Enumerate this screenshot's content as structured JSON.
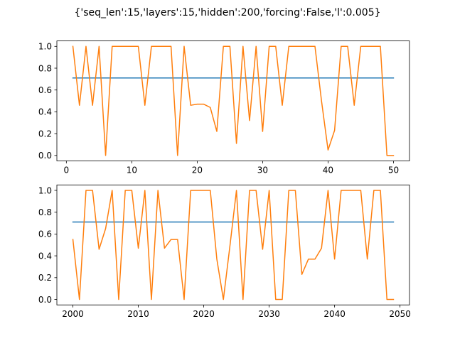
{
  "figure": {
    "title": "{'seq_len':15,'layers':15,'hidden':200,'forcing':False,'l':0.005}"
  },
  "chart_data": [
    {
      "type": "line",
      "xlim": [
        -1.45,
        52.45
      ],
      "ylim": [
        -0.05,
        1.05
      ],
      "x_ticks": [
        0,
        10,
        20,
        30,
        40,
        50
      ],
      "y_ticks": [
        0.0,
        0.2,
        0.4,
        0.6,
        0.8,
        1.0
      ],
      "x_tick_labels": [
        "0",
        "10",
        "20",
        "30",
        "40",
        "50"
      ],
      "y_tick_labels": [
        "0.0",
        "0.2",
        "0.4",
        "0.6",
        "0.8",
        "1.0"
      ],
      "grid": false,
      "series": [
        {
          "color": "#1f77b4",
          "x": [
            1,
            50
          ],
          "y": [
            0.71,
            0.71
          ]
        },
        {
          "color": "#ff7f0e",
          "x": [
            1,
            2,
            3,
            4,
            5,
            6,
            7,
            8,
            9,
            10,
            11,
            12,
            13,
            14,
            15,
            16,
            17,
            18,
            19,
            20,
            21,
            22,
            23,
            24,
            25,
            26,
            27,
            28,
            29,
            30,
            31,
            32,
            33,
            34,
            35,
            36,
            37,
            38,
            39,
            40,
            41,
            42,
            43,
            44,
            45,
            46,
            47,
            48,
            49,
            50
          ],
          "y": [
            1.0,
            0.46,
            1.0,
            0.46,
            1.0,
            0.0,
            1.0,
            1.0,
            1.0,
            1.0,
            1.0,
            0.46,
            1.0,
            1.0,
            1.0,
            1.0,
            0.0,
            1.0,
            0.46,
            0.47,
            0.47,
            0.44,
            0.22,
            1.0,
            1.0,
            0.11,
            1.0,
            0.32,
            1.0,
            0.22,
            1.0,
            1.0,
            0.46,
            1.0,
            1.0,
            1.0,
            1.0,
            1.0,
            0.5,
            0.05,
            0.23,
            1.0,
            1.0,
            0.46,
            1.0,
            1.0,
            1.0,
            1.0,
            0.0,
            0.0
          ]
        }
      ]
    },
    {
      "type": "line",
      "xlim": [
        1997.55,
        2051.45
      ],
      "ylim": [
        -0.05,
        1.05
      ],
      "x_ticks": [
        2000,
        2010,
        2020,
        2030,
        2040,
        2050
      ],
      "y_ticks": [
        0.0,
        0.2,
        0.4,
        0.6,
        0.8,
        1.0
      ],
      "x_tick_labels": [
        "2000",
        "2010",
        "2020",
        "2030",
        "2040",
        "2050"
      ],
      "y_tick_labels": [
        "0.0",
        "0.2",
        "0.4",
        "0.6",
        "0.8",
        "1.0"
      ],
      "grid": false,
      "series": [
        {
          "color": "#1f77b4",
          "x": [
            2000,
            2049
          ],
          "y": [
            0.71,
            0.71
          ]
        },
        {
          "color": "#ff7f0e",
          "x": [
            2000,
            2001,
            2002,
            2003,
            2004,
            2005,
            2006,
            2007,
            2008,
            2009,
            2010,
            2011,
            2012,
            2013,
            2014,
            2015,
            2016,
            2017,
            2018,
            2019,
            2020,
            2021,
            2022,
            2023,
            2024,
            2025,
            2026,
            2027,
            2028,
            2029,
            2030,
            2031,
            2032,
            2033,
            2034,
            2035,
            2036,
            2037,
            2038,
            2039,
            2040,
            2041,
            2042,
            2043,
            2044,
            2045,
            2046,
            2047,
            2048,
            2049
          ],
          "y": [
            0.55,
            0.0,
            1.0,
            1.0,
            0.46,
            0.65,
            1.0,
            0.0,
            1.0,
            1.0,
            0.47,
            1.0,
            0.0,
            1.0,
            0.47,
            0.55,
            0.55,
            0.0,
            1.0,
            1.0,
            1.0,
            1.0,
            0.37,
            0.0,
            0.49,
            1.0,
            0.0,
            1.0,
            1.0,
            0.46,
            1.0,
            0.0,
            0.0,
            1.0,
            1.0,
            0.23,
            0.37,
            0.37,
            0.47,
            1.0,
            0.37,
            1.0,
            1.0,
            1.0,
            1.0,
            0.37,
            1.0,
            1.0,
            0.0,
            0.0
          ]
        }
      ]
    }
  ]
}
